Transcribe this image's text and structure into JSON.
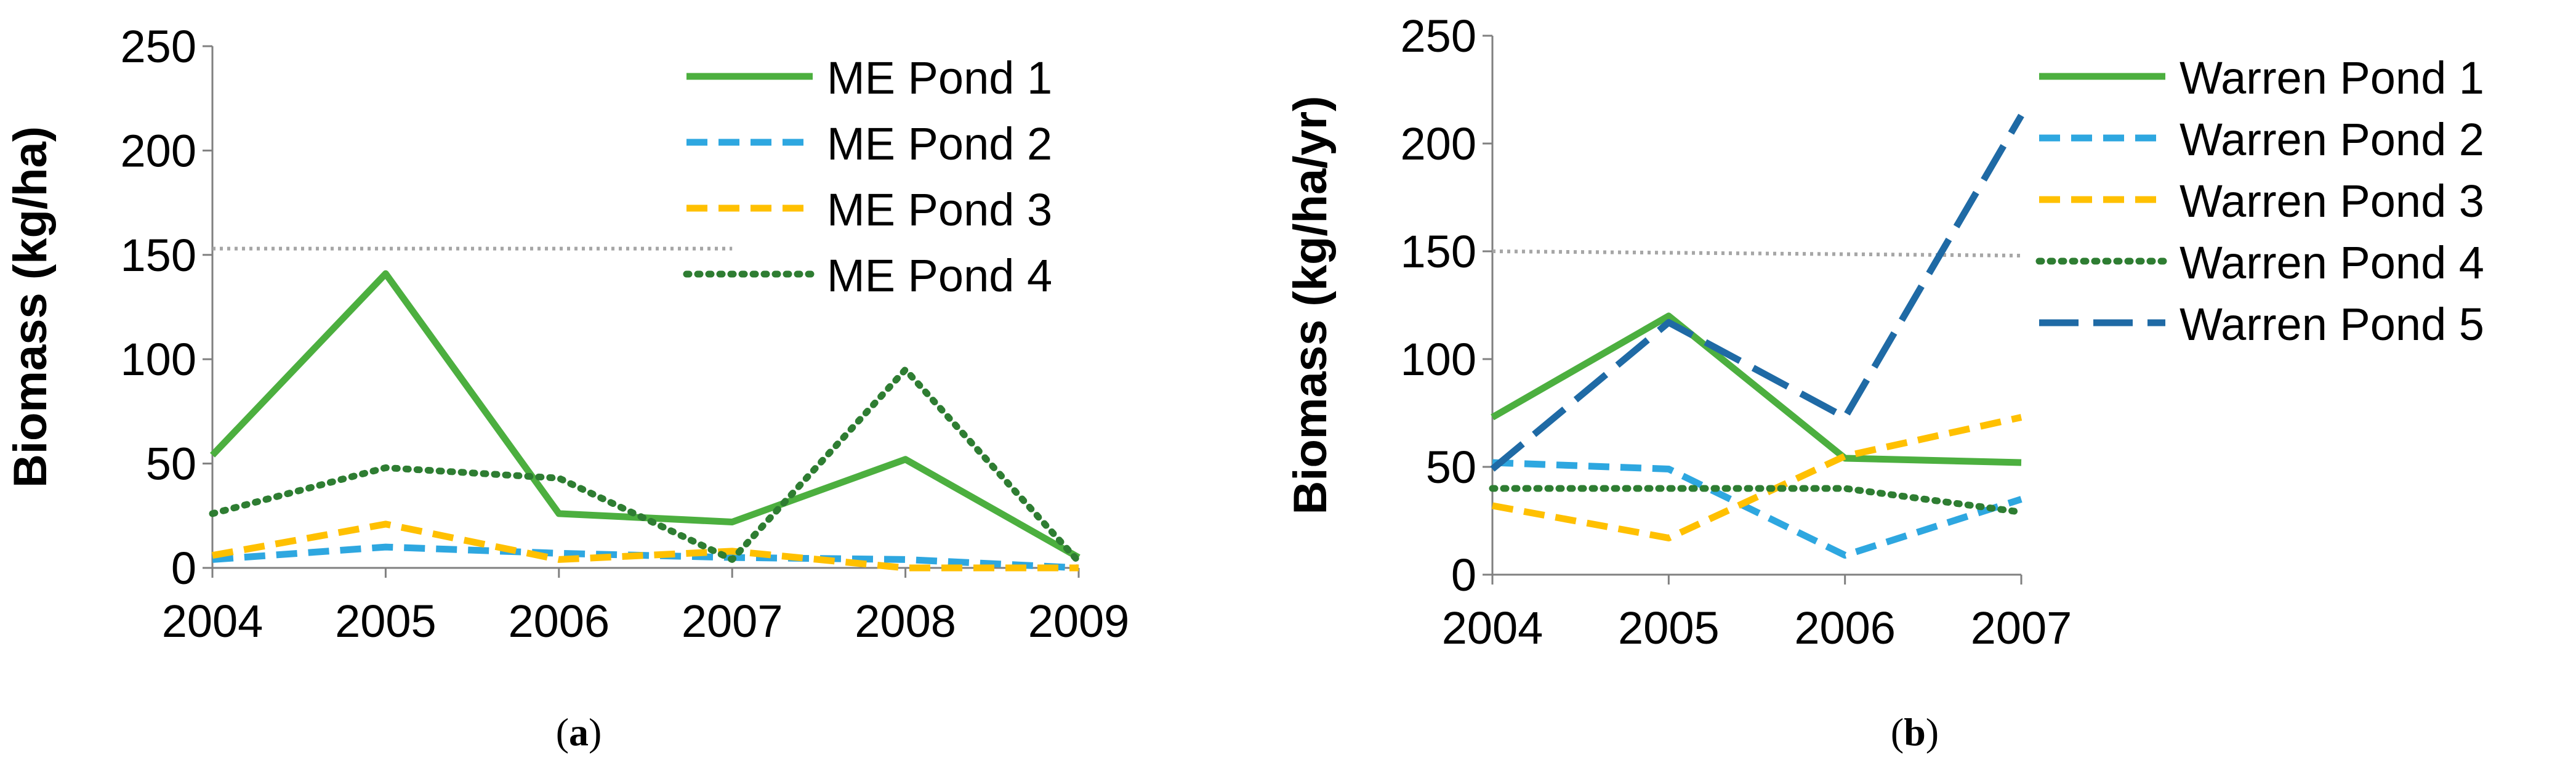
{
  "chart_data": [
    {
      "type": "line",
      "panel": "a",
      "caption_open": "(",
      "caption_letter": "a",
      "caption_close": ")",
      "title": "",
      "xlabel": "",
      "ylabel": "Biomass (kg/ha)",
      "categories": [
        "2004",
        "2005",
        "2006",
        "2007",
        "2008",
        "2009"
      ],
      "ylim": [
        0,
        250
      ],
      "yticks": [
        "0",
        "50",
        "100",
        "150",
        "200",
        "250"
      ],
      "legend_position": "top-right",
      "reference_line": {
        "values": [
          153,
          153
        ],
        "span": [
          "2004",
          "2007"
        ],
        "color": "#a6a6a6",
        "style": "dotted"
      },
      "series": [
        {
          "name": "ME Pond 1",
          "values": [
            54,
            141,
            26,
            22,
            52,
            5
          ],
          "color": "#4caf3f",
          "style": "solid"
        },
        {
          "name": "ME Pond 2",
          "values": [
            4,
            10,
            7,
            5,
            4,
            0
          ],
          "color": "#2ea7e0",
          "style": "dashed"
        },
        {
          "name": "ME Pond 3",
          "values": [
            6,
            21,
            4,
            8,
            0,
            0
          ],
          "color": "#ffc000",
          "style": "dashed"
        },
        {
          "name": "ME Pond 4",
          "values": [
            26,
            48,
            43,
            4,
            95,
            3
          ],
          "color": "#2e7d32",
          "style": "dotted"
        }
      ]
    },
    {
      "type": "line",
      "panel": "b",
      "caption_open": "(",
      "caption_letter": "b",
      "caption_close": ")",
      "title": "",
      "xlabel": "",
      "ylabel": "Biomass (kg/ha/yr)",
      "categories": [
        "2004",
        "2005",
        "2006",
        "2007"
      ],
      "ylim": [
        0,
        250
      ],
      "yticks": [
        "0",
        "50",
        "100",
        "150",
        "200",
        "250"
      ],
      "legend_position": "top-right",
      "reference_line": {
        "values": [
          150,
          148
        ],
        "span": [
          "2004",
          "2007"
        ],
        "color": "#a6a6a6",
        "style": "dotted"
      },
      "series": [
        {
          "name": "Warren Pond 1",
          "values": [
            73,
            120,
            54,
            52
          ],
          "color": "#4caf3f",
          "style": "solid"
        },
        {
          "name": "Warren Pond 2",
          "values": [
            52,
            49,
            9,
            35
          ],
          "color": "#2ea7e0",
          "style": "dashed"
        },
        {
          "name": "Warren Pond 3",
          "values": [
            32,
            17,
            55,
            73
          ],
          "color": "#ffc000",
          "style": "dashed"
        },
        {
          "name": "Warren Pond 4",
          "values": [
            40,
            40,
            40,
            29
          ],
          "color": "#2e7d32",
          "style": "dotted"
        },
        {
          "name": "Warren Pond 5",
          "values": [
            49,
            117,
            73,
            213
          ],
          "color": "#1f6aa5",
          "style": "longdash"
        }
      ]
    }
  ]
}
